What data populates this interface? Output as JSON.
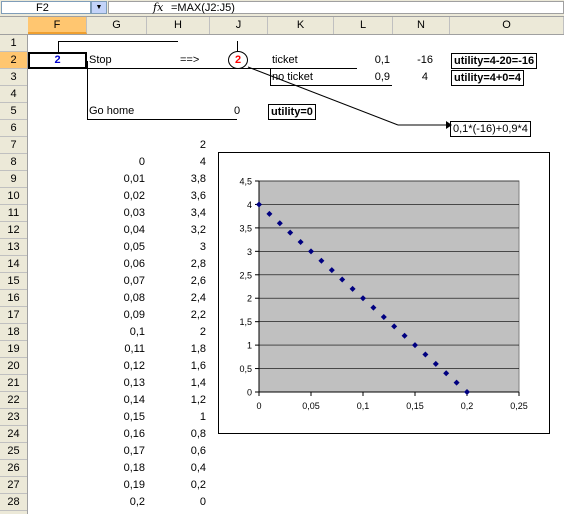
{
  "formula_bar": {
    "name_box": "F2",
    "fx": "fx",
    "formula": "=MAX(J2:J5)"
  },
  "columns": [
    "F",
    "G",
    "H",
    "J",
    "K",
    "L",
    "N",
    "O"
  ],
  "rows": [
    "1",
    "2",
    "3",
    "4",
    "5",
    "6",
    "7",
    "8",
    "9",
    "10",
    "11",
    "12",
    "13",
    "14",
    "15",
    "16",
    "17",
    "18",
    "19",
    "20",
    "21",
    "22",
    "23",
    "24",
    "25",
    "26",
    "27",
    "28"
  ],
  "active_cell": {
    "value": "2"
  },
  "tree": {
    "stop_label": "Stop",
    "arrow": "==>",
    "decision_value": "2",
    "ticket_label": "ticket",
    "ticket_prob": "0,1",
    "ticket_payoff": "-16",
    "ticket_utility": "utility=4-20=-16",
    "noticket_label": "no ticket",
    "noticket_prob": "0,9",
    "noticket_payoff": "4",
    "noticket_utility": "utility=4+0=4",
    "gohome_label": "Go home",
    "gohome_value": "0",
    "gohome_utility": "utility=0",
    "expected_formula": "0,1*(-16)+0,9*4"
  },
  "table": {
    "h7": "2",
    "g_values": [
      "0",
      "0,01",
      "0,02",
      "0,03",
      "0,04",
      "0,05",
      "0,06",
      "0,07",
      "0,08",
      "0,09",
      "0,1",
      "0,11",
      "0,12",
      "0,13",
      "0,14",
      "0,15",
      "0,16",
      "0,17",
      "0,18",
      "0,19",
      "0,2"
    ],
    "h_values": [
      "4",
      "3,8",
      "3,6",
      "3,4",
      "3,2",
      "3",
      "2,8",
      "2,6",
      "2,4",
      "2,2",
      "2",
      "1,8",
      "1,6",
      "1,4",
      "1,2",
      "1",
      "0,8",
      "0,6",
      "0,4",
      "0,2",
      "0"
    ]
  },
  "chart_data": {
    "type": "scatter",
    "x": [
      0,
      0.01,
      0.02,
      0.03,
      0.04,
      0.05,
      0.06,
      0.07,
      0.08,
      0.09,
      0.1,
      0.11,
      0.12,
      0.13,
      0.14,
      0.15,
      0.16,
      0.17,
      0.18,
      0.19,
      0.2
    ],
    "y": [
      4,
      3.8,
      3.6,
      3.4,
      3.2,
      3,
      2.8,
      2.6,
      2.4,
      2.2,
      2,
      1.8,
      1.6,
      1.4,
      1.2,
      1,
      0.8,
      0.6,
      0.4,
      0.2,
      0
    ],
    "xlim": [
      0,
      0.25
    ],
    "ylim": [
      0,
      4.5
    ],
    "x_ticks": [
      "0",
      "0,05",
      "0,1",
      "0,15",
      "0,2",
      "0,25"
    ],
    "y_ticks": [
      "0",
      "0,5",
      "1",
      "1,5",
      "2",
      "2,5",
      "3",
      "3,5",
      "4",
      "4,5"
    ],
    "grid": true,
    "plot_background": "#c0c0c0",
    "marker_color": "#000080"
  }
}
